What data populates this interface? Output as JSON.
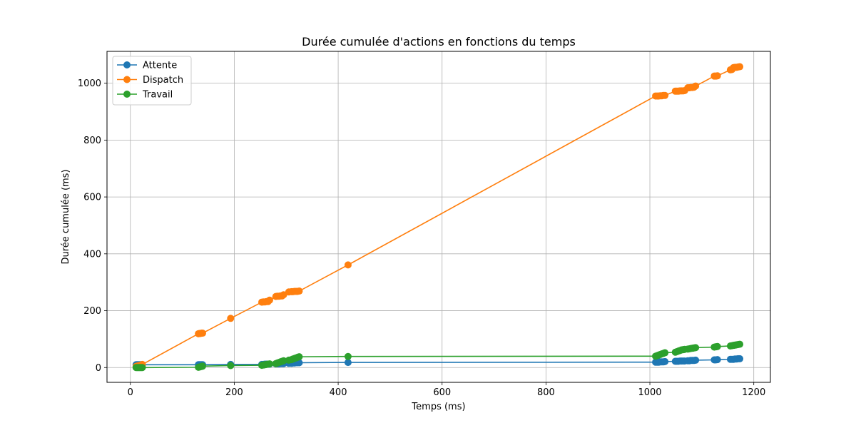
{
  "chart_data": {
    "type": "line",
    "title": "Durée cumulée d'actions en fonctions du temps",
    "xlabel": "Temps (ms)",
    "ylabel": "Durée cumulée (ms)",
    "xlim": [
      -45,
      1232
    ],
    "ylim": [
      -52,
      1112
    ],
    "xticks": [
      0,
      200,
      400,
      600,
      800,
      1000,
      1200
    ],
    "yticks": [
      0,
      200,
      400,
      600,
      800,
      1000
    ],
    "grid": true,
    "legend_position": "top-left",
    "marker": "circle",
    "series": [
      {
        "name": "Attente",
        "color": "#1f77b4",
        "x": [
          11,
          13,
          15,
          17,
          19,
          21,
          23,
          131,
          133,
          135,
          137,
          139,
          193,
          253,
          256,
          259,
          262,
          265,
          268,
          280,
          283,
          286,
          289,
          292,
          295,
          305,
          310,
          313,
          316,
          319,
          322,
          325,
          419,
          1011,
          1014,
          1017,
          1020,
          1023,
          1026,
          1029,
          1049,
          1052,
          1055,
          1058,
          1061,
          1064,
          1067,
          1073,
          1076,
          1079,
          1082,
          1085,
          1088,
          1124,
          1127,
          1130,
          1155,
          1158,
          1161,
          1164,
          1167,
          1170,
          1173
        ],
        "y": [
          10,
          10,
          10,
          10,
          10,
          10,
          10,
          10,
          10,
          10,
          10,
          10,
          11,
          11,
          11,
          12,
          12,
          12,
          12,
          13,
          13,
          13,
          14,
          14,
          14,
          15,
          15,
          16,
          16,
          17,
          17,
          17,
          18,
          19,
          19,
          19,
          20,
          20,
          20,
          21,
          22,
          22,
          22,
          23,
          23,
          23,
          23,
          24,
          24,
          25,
          25,
          25,
          26,
          27,
          27,
          28,
          29,
          29,
          29,
          30,
          30,
          31,
          31
        ]
      },
      {
        "name": "Dispatch",
        "color": "#ff7f0e",
        "x": [
          11,
          13,
          15,
          17,
          19,
          21,
          23,
          131,
          133,
          135,
          137,
          139,
          193,
          253,
          256,
          259,
          262,
          265,
          268,
          280,
          283,
          286,
          289,
          292,
          295,
          305,
          310,
          313,
          316,
          319,
          322,
          325,
          419,
          1011,
          1014,
          1017,
          1020,
          1023,
          1026,
          1029,
          1049,
          1052,
          1055,
          1058,
          1061,
          1064,
          1067,
          1073,
          1076,
          1079,
          1082,
          1085,
          1088,
          1124,
          1127,
          1130,
          1155,
          1158,
          1161,
          1164,
          1167,
          1170,
          1173
        ],
        "y": [
          4,
          5,
          6,
          7,
          8,
          9,
          11,
          119,
          120,
          120,
          121,
          121,
          173,
          230,
          231,
          231,
          232,
          232,
          237,
          250,
          251,
          251,
          252,
          252,
          256,
          266,
          267,
          267,
          268,
          268,
          268,
          269,
          361,
          955,
          955,
          955,
          956,
          956,
          957,
          957,
          972,
          972,
          972,
          973,
          973,
          973,
          974,
          984,
          984,
          985,
          985,
          986,
          990,
          1025,
          1025,
          1026,
          1047,
          1048,
          1055,
          1056,
          1056,
          1057,
          1058
        ]
      },
      {
        "name": "Travail",
        "color": "#2ca02c",
        "x": [
          11,
          13,
          15,
          17,
          19,
          21,
          23,
          131,
          133,
          135,
          137,
          139,
          193,
          253,
          256,
          259,
          262,
          265,
          268,
          280,
          283,
          286,
          289,
          292,
          295,
          305,
          310,
          313,
          316,
          319,
          322,
          325,
          419,
          1011,
          1014,
          1017,
          1020,
          1023,
          1026,
          1029,
          1049,
          1052,
          1055,
          1058,
          1061,
          1064,
          1067,
          1073,
          1076,
          1079,
          1082,
          1085,
          1088,
          1124,
          1127,
          1130,
          1155,
          1158,
          1161,
          1164,
          1167,
          1170,
          1173
        ],
        "y": [
          0,
          0,
          0,
          0,
          0,
          0,
          0,
          1,
          2,
          3,
          4,
          5,
          7,
          8,
          9,
          10,
          11,
          12,
          13,
          14,
          16,
          18,
          20,
          22,
          24,
          26,
          28,
          30,
          32,
          34,
          36,
          38,
          39,
          40,
          42,
          44,
          46,
          48,
          50,
          52,
          54,
          56,
          58,
          60,
          62,
          63,
          64,
          65,
          66,
          67,
          68,
          69,
          70,
          72,
          73,
          74,
          76,
          77,
          78,
          79,
          80,
          81,
          82
        ]
      }
    ]
  }
}
